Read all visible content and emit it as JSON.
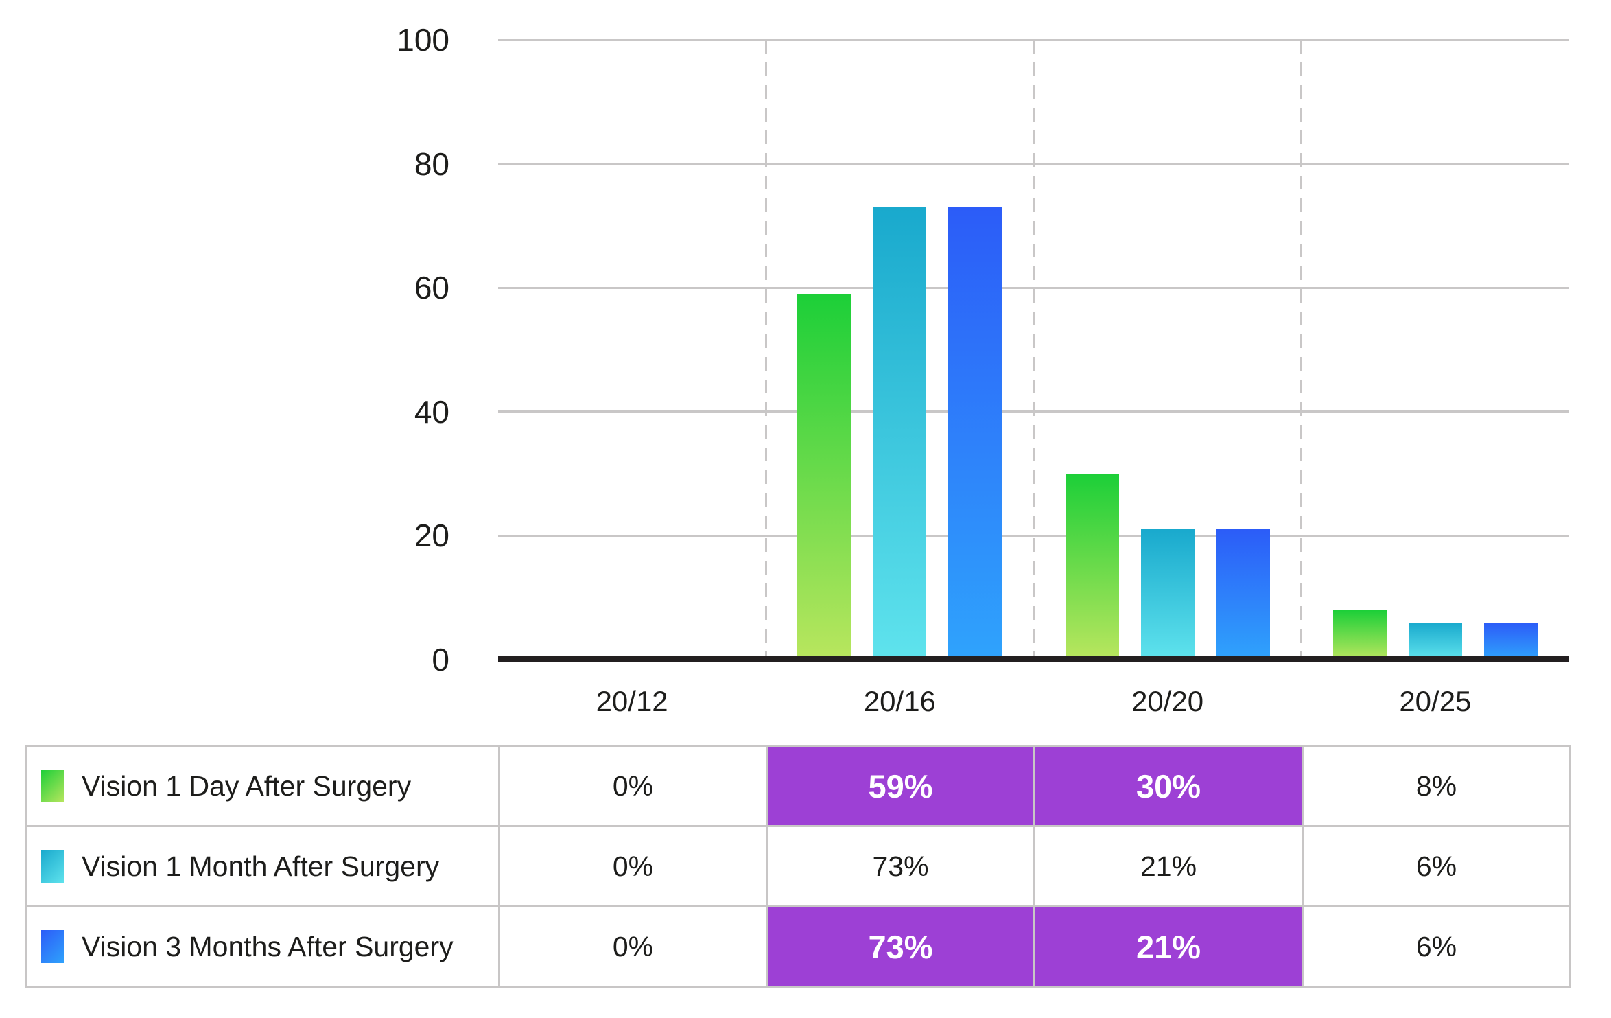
{
  "chart_data": {
    "type": "bar",
    "title": "",
    "xlabel": "",
    "ylabel": "",
    "categories": [
      "20/12",
      "20/16",
      "20/20",
      "20/25"
    ],
    "series": [
      {
        "name": "Vision 1 Day After Surgery",
        "values": [
          0,
          59,
          30,
          8
        ]
      },
      {
        "name": "Vision 1 Month After Surgery",
        "values": [
          0,
          73,
          21,
          6
        ]
      },
      {
        "name": "Vision 3 Months After Surgery",
        "values": [
          0,
          73,
          21,
          6
        ]
      }
    ],
    "ylim": [
      0,
      100
    ],
    "yticks": [
      0,
      20,
      40,
      60,
      80,
      100
    ],
    "grid": "horizontal solid lines at each ytick, vertical dashed separators between categories",
    "legend_position": "table below chart"
  },
  "table": {
    "rows": [
      {
        "label": "Vision 1 Day After Surgery",
        "values": [
          "0%",
          "59%",
          "30%",
          "8%"
        ],
        "highlighted": [
          false,
          true,
          true,
          false
        ]
      },
      {
        "label": "Vision 1 Month After Surgery",
        "values": [
          "0%",
          "73%",
          "21%",
          "6%"
        ],
        "highlighted": [
          false,
          false,
          false,
          false
        ]
      },
      {
        "label": "Vision 3 Months After Surgery",
        "values": [
          "0%",
          "73%",
          "21%",
          "6%"
        ],
        "highlighted": [
          false,
          true,
          true,
          false
        ]
      }
    ]
  },
  "colors": {
    "series_gradients": [
      {
        "top": "#1ccf38",
        "bottom": "#b9e65e"
      },
      {
        "top": "#19a9cd",
        "bottom": "#5fe3ed"
      },
      {
        "top": "#2c5cf8",
        "bottom": "#2fa3fc"
      }
    ],
    "highlight_purple": "#9d40d5",
    "grid_gray": "#c9c7c7",
    "table_border_gray": "#c8c6c6",
    "axis_black": "#231f20",
    "text": "#1d1d1b",
    "highlight_text": "#ffffff"
  }
}
